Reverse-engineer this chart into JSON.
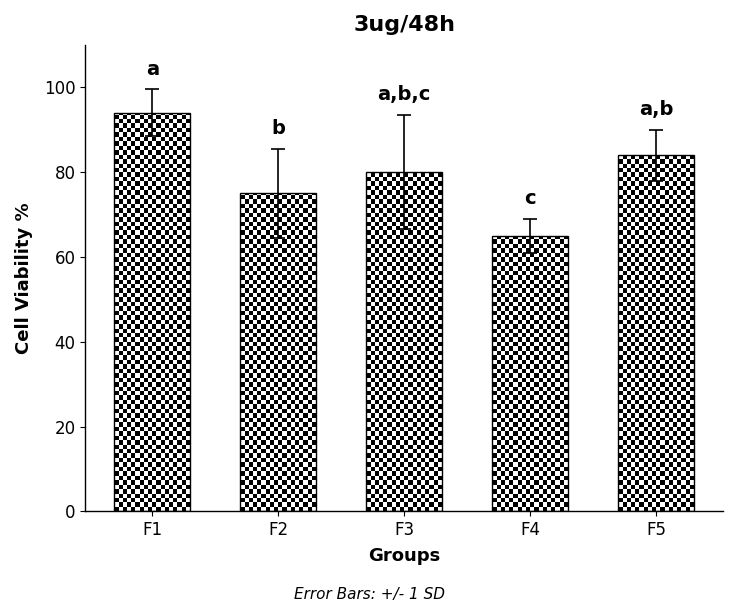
{
  "title": "3ug/48h",
  "xlabel": "Groups",
  "ylabel": "Cell Viability %",
  "categories": [
    "F1",
    "F2",
    "F3",
    "F4",
    "F5"
  ],
  "values": [
    94.0,
    75.0,
    80.0,
    65.0,
    84.0
  ],
  "errors": [
    5.5,
    10.5,
    13.5,
    4.0,
    6.0
  ],
  "sig_labels": [
    "a",
    "b",
    "a,b,c",
    "c",
    "a,b"
  ],
  "ylim": [
    0,
    110
  ],
  "yticks": [
    0,
    20,
    40,
    60,
    80,
    100
  ],
  "footer_text": "Error Bars: +/- 1 SD",
  "title_fontsize": 16,
  "label_fontsize": 13,
  "tick_fontsize": 12,
  "sig_fontsize": 14,
  "footer_fontsize": 11,
  "bar_width": 0.6,
  "checker_size": 0.022
}
